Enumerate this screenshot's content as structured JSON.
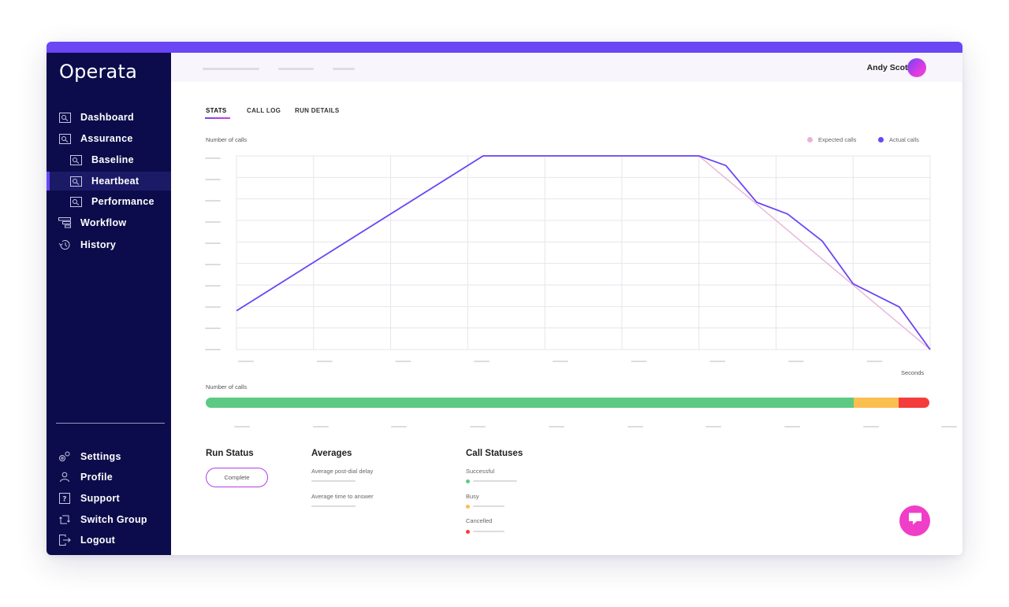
{
  "app": {
    "logo": "Operata"
  },
  "sidebar": {
    "items": [
      {
        "label": "Dashboard",
        "icon": "dashboard-icon"
      },
      {
        "label": "Assurance",
        "icon": "assurance-icon"
      },
      {
        "label": "Baseline",
        "icon": "baseline-icon"
      },
      {
        "label": "Heartbeat",
        "icon": "heartbeat-icon",
        "active": true
      },
      {
        "label": "Performance",
        "icon": "performance-icon"
      },
      {
        "label": "Workflow",
        "icon": "workflow-icon"
      },
      {
        "label": "History",
        "icon": "history-icon"
      }
    ],
    "bottom_items": [
      {
        "label": "Settings",
        "icon": "settings-icon"
      },
      {
        "label": "Profile",
        "icon": "profile-icon"
      },
      {
        "label": "Support",
        "icon": "support-icon"
      },
      {
        "label": "Switch Group",
        "icon": "switch-group-icon"
      },
      {
        "label": "Logout",
        "icon": "logout-icon"
      }
    ]
  },
  "header": {
    "user_name": "Andy Scott"
  },
  "tabs": [
    {
      "label": "STATS",
      "active": true
    },
    {
      "label": "CALL LOG"
    },
    {
      "label": "RUN DETAILS"
    }
  ],
  "chart_data": {
    "type": "line",
    "ylabel": "Number of calls",
    "xlabel": "Seconds",
    "legend_position": "top-right",
    "grid": true,
    "series": [
      {
        "name": "Expected calls",
        "color": "#e8b4d8",
        "points": [
          [
            0,
            20
          ],
          [
            3.2,
            100
          ],
          [
            6.0,
            100
          ],
          [
            9.0,
            0
          ]
        ]
      },
      {
        "name": "Actual calls",
        "color": "#6a46f5",
        "points": [
          [
            0,
            20
          ],
          [
            3.2,
            100
          ],
          [
            6.0,
            100
          ],
          [
            6.35,
            95
          ],
          [
            6.75,
            76
          ],
          [
            7.15,
            70
          ],
          [
            7.6,
            56
          ],
          [
            8.0,
            34
          ],
          [
            8.6,
            22
          ],
          [
            9.0,
            0
          ]
        ]
      }
    ],
    "xlim": [
      0,
      9
    ],
    "ylim": [
      0,
      100
    ]
  },
  "status_bar": {
    "label": "Number of calls",
    "segments": [
      {
        "name": "Successful",
        "fraction": 0.895,
        "color": "#5cca82"
      },
      {
        "name": "Busy",
        "fraction": 0.063,
        "color": "#fbbf50"
      },
      {
        "name": "Cancelled",
        "fraction": 0.042,
        "color": "#f53c3c"
      }
    ]
  },
  "run_status": {
    "title": "Run Status",
    "value": "Complete"
  },
  "averages": {
    "title": "Averages",
    "items": [
      {
        "label": "Average post-dial delay"
      },
      {
        "label": "Average time to answer"
      }
    ]
  },
  "call_statuses": {
    "title": "Call Statuses",
    "items": [
      {
        "label": "Successful",
        "color": "#5cca82"
      },
      {
        "label": "Busy",
        "color": "#fbbf50"
      },
      {
        "label": "Cancelled",
        "color": "#f53c3c"
      }
    ]
  }
}
